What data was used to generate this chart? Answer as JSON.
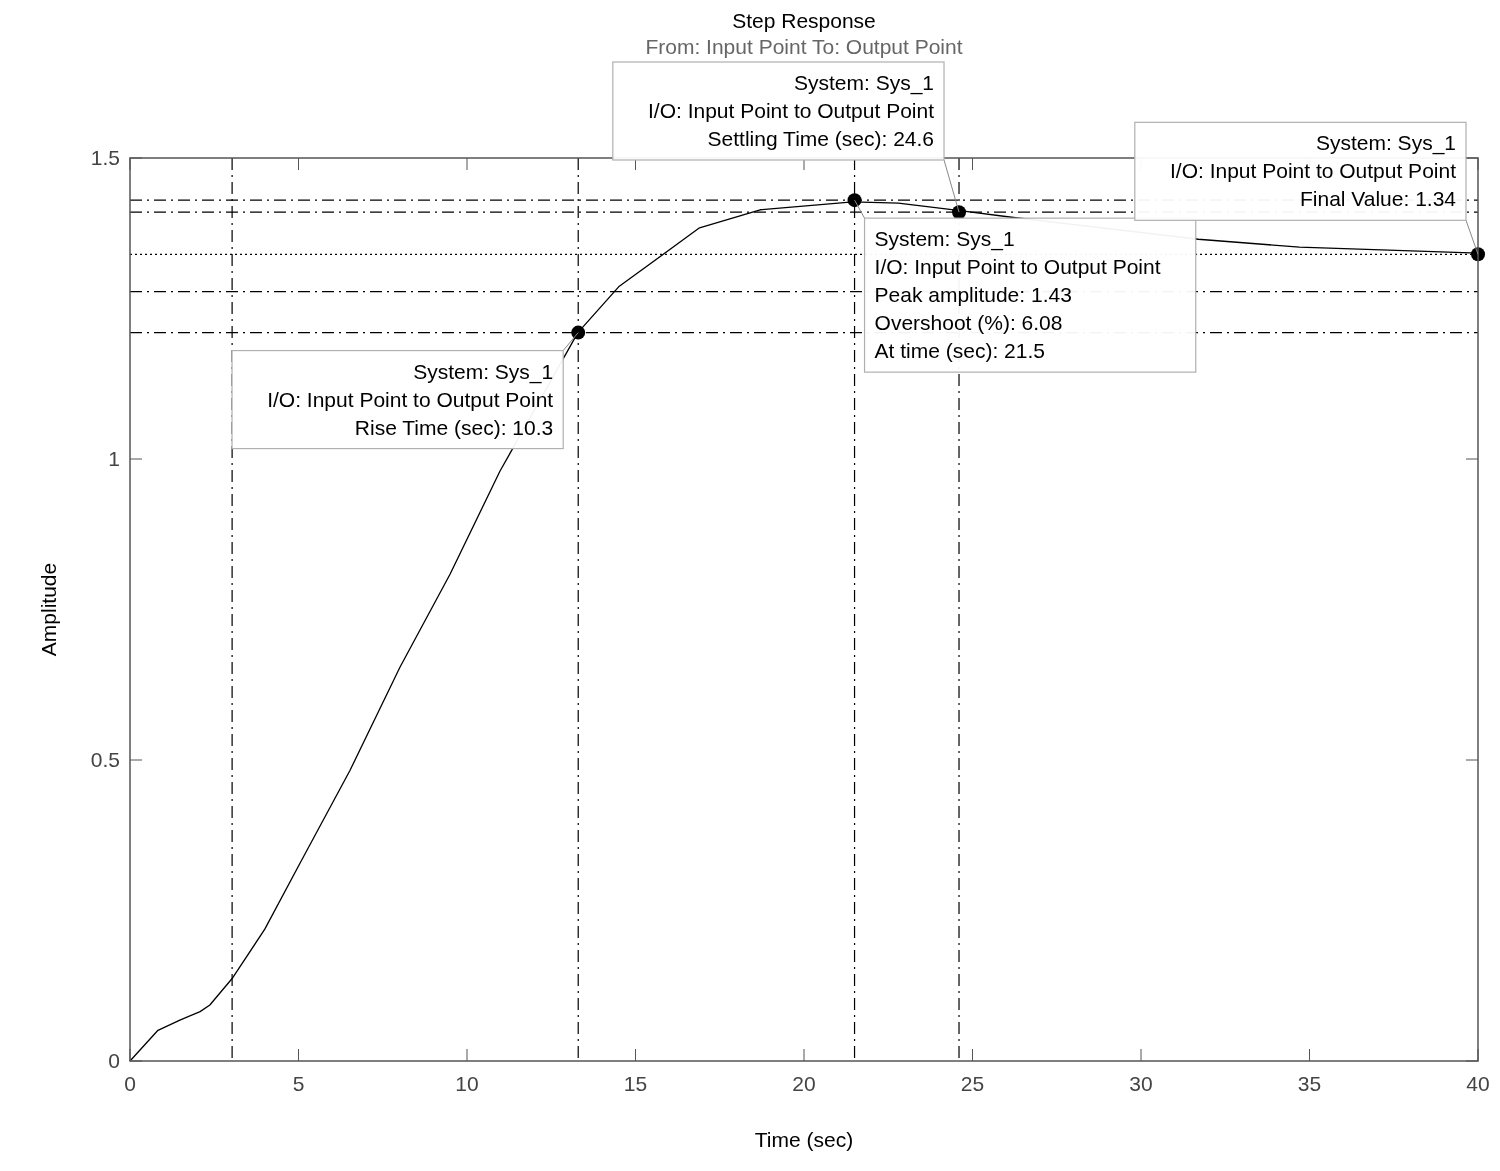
{
  "chart_data": {
    "type": "line",
    "title": "Step Response",
    "subtitle": "From: Input Point  To: Output Point",
    "xlabel": "Time (sec)",
    "ylabel": "Amplitude",
    "xlim": [
      0,
      40
    ],
    "xticks": [
      0,
      5,
      10,
      15,
      20,
      25,
      30,
      35,
      40
    ],
    "ylim": [
      0,
      1.5
    ],
    "yticks": [
      0,
      0.5,
      1,
      1.5
    ],
    "grid": false,
    "series": [
      {
        "type": "line",
        "color": "#000000",
        "marker": "none",
        "x": [
          0,
          0.83,
          1.48,
          2.08,
          2.37,
          3.03,
          4.0,
          5.04,
          6.53,
          8.01,
          9.5,
          10.98,
          13.29,
          14.5,
          16.9,
          18.7,
          21.45,
          22.8,
          24.57,
          26.1,
          31.7,
          34.7,
          40
        ],
        "values": [
          0,
          0.051,
          0.068,
          0.082,
          0.093,
          0.137,
          0.219,
          0.328,
          0.483,
          0.654,
          0.809,
          0.98,
          1.21,
          1.286,
          1.384,
          1.414,
          1.427,
          1.425,
          1.413,
          1.402,
          1.365,
          1.352,
          1.342
        ]
      },
      {
        "type": "scatter",
        "color": "#000000",
        "marker": "circle",
        "x": [
          13.3,
          21.5,
          24.6,
          40
        ],
        "values": [
          1.21,
          1.43,
          1.41,
          1.34
        ]
      }
    ],
    "ref_lines": [
      {
        "axis": "x",
        "value": 3.03,
        "line_style": "dashed"
      },
      {
        "axis": "x",
        "value": 13.3,
        "line_style": "dashed"
      },
      {
        "axis": "x",
        "value": 21.5,
        "line_style": "dashed"
      },
      {
        "axis": "x",
        "value": 24.6,
        "line_style": "dashed"
      },
      {
        "axis": "y",
        "value": 1.21,
        "line_style": "dashed"
      },
      {
        "axis": "y",
        "value": 1.278,
        "line_style": "dashed"
      },
      {
        "axis": "y",
        "value": 1.41,
        "line_style": "dashed"
      },
      {
        "axis": "y",
        "value": 1.43,
        "line_style": "dashed"
      },
      {
        "axis": "y",
        "value": 1.34,
        "line_style": "dotted"
      }
    ],
    "annotations": [
      {
        "text": "System: Sys_1\nI/O: Input Point to Output Point\nRise Time (sec): 10.3",
        "x": 13.3,
        "y": 1.21
      },
      {
        "text": "System: Sys_1\nI/O: Input Point to Output Point\nPeak amplitude: 1.43\nOvershoot (%): 6.08\nAt time (sec): 21.5",
        "x": 21.5,
        "y": 1.43
      },
      {
        "text": "System: Sys_1\nI/O: Input Point to Output Point\nSettling Time (sec): 24.6",
        "x": 24.6,
        "y": 1.41
      },
      {
        "text": "System: Sys_1\nI/O: Input Point to Output Point\nFinal Value: 1.34",
        "x": 40,
        "y": 1.34
      }
    ]
  }
}
